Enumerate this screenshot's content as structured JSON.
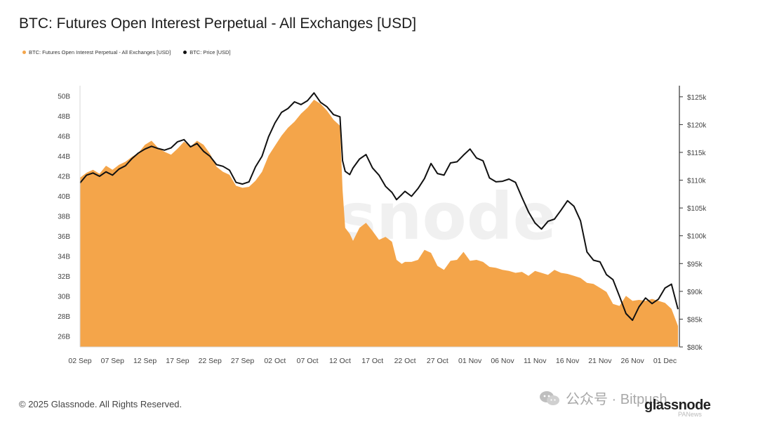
{
  "header": {
    "title": "BTC: Futures Open Interest Perpetual - All Exchanges [USD]"
  },
  "legend": [
    {
      "label": "BTC: Futures Open Interest Perpetual - All Exchanges [USD]",
      "color": "#f4a54a"
    },
    {
      "label": "BTC: Price [USD]",
      "color": "#111111"
    }
  ],
  "footer": {
    "copyright": "© 2025 Glassnode. All Rights Reserved.",
    "wechat_label": "公众号 · Bitpush",
    "logo_text": "glassnode",
    "small_logo": "PANews"
  },
  "watermark": "glassnode",
  "chart_data": {
    "type": "area",
    "title": "BTC: Futures Open Interest Perpetual - All Exchanges [USD]",
    "x_tick_labels": [
      "02 Sep",
      "07 Sep",
      "12 Sep",
      "17 Sep",
      "22 Sep",
      "27 Sep",
      "02 Oct",
      "07 Oct",
      "12 Oct",
      "17 Oct",
      "22 Oct",
      "27 Oct",
      "01 Nov",
      "06 Nov",
      "11 Nov",
      "16 Nov",
      "21 Nov",
      "26 Nov",
      "01 Dec"
    ],
    "y_left_ticks": [
      "26B",
      "28B",
      "30B",
      "32B",
      "34B",
      "36B",
      "38B",
      "40B",
      "42B",
      "44B",
      "46B",
      "48B",
      "50B"
    ],
    "y_right_ticks": [
      "$80k",
      "$85k",
      "$90k",
      "$95k",
      "$100k",
      "$105k",
      "$110k",
      "$115k",
      "$120k",
      "$125k"
    ],
    "y_left_range": [
      24.9,
      51
    ],
    "y_right_range": [
      80000,
      127000
    ],
    "x_range_days": [
      0,
      92
    ],
    "series": [
      {
        "name": "BTC: Futures Open Interest Perpetual - All Exchanges [USD]",
        "axis": "left",
        "unit": "B USD",
        "style": "area",
        "color": "#f4a54a",
        "points": [
          [
            0,
            41.8
          ],
          [
            1,
            42.3
          ],
          [
            2,
            42.6
          ],
          [
            3,
            42.2
          ],
          [
            4,
            43.0
          ],
          [
            5,
            42.6
          ],
          [
            6,
            43.1
          ],
          [
            7,
            43.4
          ],
          [
            8,
            43.9
          ],
          [
            9,
            44.3
          ],
          [
            10,
            45.1
          ],
          [
            11,
            45.5
          ],
          [
            12,
            44.8
          ],
          [
            13,
            44.4
          ],
          [
            14,
            44.1
          ],
          [
            15,
            44.7
          ],
          [
            16,
            45.4
          ],
          [
            17,
            44.9
          ],
          [
            18,
            45.5
          ],
          [
            19,
            45.1
          ],
          [
            20,
            44.2
          ],
          [
            21,
            42.9
          ],
          [
            22,
            42.4
          ],
          [
            23,
            42.1
          ],
          [
            24,
            41.0
          ],
          [
            25,
            40.8
          ],
          [
            26,
            40.9
          ],
          [
            27,
            41.5
          ],
          [
            28,
            42.4
          ],
          [
            29,
            44.0
          ],
          [
            30,
            45.0
          ],
          [
            31,
            46.0
          ],
          [
            32,
            46.8
          ],
          [
            33,
            47.4
          ],
          [
            34,
            48.2
          ],
          [
            35,
            48.8
          ],
          [
            36,
            49.6
          ],
          [
            37,
            49.2
          ],
          [
            38,
            48.5
          ],
          [
            39,
            47.6
          ],
          [
            40,
            47.0
          ],
          [
            40.4,
            40.6
          ],
          [
            40.8,
            36.8
          ],
          [
            41.5,
            36.2
          ],
          [
            42,
            35.5
          ],
          [
            43,
            36.8
          ],
          [
            44,
            37.3
          ],
          [
            45,
            36.5
          ],
          [
            46,
            35.6
          ],
          [
            47,
            35.9
          ],
          [
            48,
            35.4
          ],
          [
            48.7,
            33.6
          ],
          [
            49.5,
            33.2
          ],
          [
            50,
            33.4
          ],
          [
            51,
            33.4
          ],
          [
            52,
            33.6
          ],
          [
            53,
            34.6
          ],
          [
            54,
            34.3
          ],
          [
            55,
            33.0
          ],
          [
            56,
            32.6
          ],
          [
            57,
            33.5
          ],
          [
            58,
            33.6
          ],
          [
            59,
            34.4
          ],
          [
            60,
            33.5
          ],
          [
            61,
            33.6
          ],
          [
            62,
            33.4
          ],
          [
            63,
            32.9
          ],
          [
            64,
            32.8
          ],
          [
            65,
            32.6
          ],
          [
            66,
            32.5
          ],
          [
            67,
            32.3
          ],
          [
            68,
            32.4
          ],
          [
            69,
            32.0
          ],
          [
            70,
            32.5
          ],
          [
            71,
            32.3
          ],
          [
            72,
            32.1
          ],
          [
            73,
            32.6
          ],
          [
            74,
            32.3
          ],
          [
            75,
            32.2
          ],
          [
            76,
            32.0
          ],
          [
            77,
            31.8
          ],
          [
            78,
            31.3
          ],
          [
            79,
            31.2
          ],
          [
            80,
            30.8
          ],
          [
            81,
            30.4
          ],
          [
            82,
            29.2
          ],
          [
            83,
            29.0
          ],
          [
            84,
            30.0
          ],
          [
            85,
            29.5
          ],
          [
            86,
            29.6
          ],
          [
            87,
            29.5
          ],
          [
            88,
            29.7
          ],
          [
            89,
            29.5
          ],
          [
            90,
            29.3
          ],
          [
            91,
            28.7
          ],
          [
            92,
            27.0
          ]
        ]
      },
      {
        "name": "BTC: Price [USD]",
        "axis": "right",
        "unit": "USD",
        "style": "line",
        "color": "#111111",
        "points": [
          [
            0,
            109500
          ],
          [
            1,
            110900
          ],
          [
            2,
            111300
          ],
          [
            3,
            110700
          ],
          [
            4,
            111500
          ],
          [
            5,
            110900
          ],
          [
            6,
            112000
          ],
          [
            7,
            112600
          ],
          [
            8,
            113900
          ],
          [
            9,
            114900
          ],
          [
            10,
            115600
          ],
          [
            11,
            116100
          ],
          [
            12,
            115700
          ],
          [
            13,
            115400
          ],
          [
            14,
            115800
          ],
          [
            15,
            116900
          ],
          [
            16,
            117300
          ],
          [
            17,
            116000
          ],
          [
            18,
            116600
          ],
          [
            19,
            115200
          ],
          [
            20,
            114300
          ],
          [
            21,
            112800
          ],
          [
            22,
            112500
          ],
          [
            23,
            111800
          ],
          [
            24,
            109600
          ],
          [
            25,
            109300
          ],
          [
            26,
            109700
          ],
          [
            27,
            112400
          ],
          [
            28,
            114300
          ],
          [
            29,
            117800
          ],
          [
            30,
            120300
          ],
          [
            31,
            122200
          ],
          [
            32,
            122900
          ],
          [
            33,
            124100
          ],
          [
            34,
            123600
          ],
          [
            35,
            124300
          ],
          [
            36,
            125700
          ],
          [
            37,
            124000
          ],
          [
            38,
            123200
          ],
          [
            39,
            121800
          ],
          [
            40,
            121400
          ],
          [
            40.4,
            113500
          ],
          [
            40.8,
            111600
          ],
          [
            41.5,
            111000
          ],
          [
            42,
            112200
          ],
          [
            43,
            113800
          ],
          [
            44,
            114600
          ],
          [
            45,
            112200
          ],
          [
            46,
            110900
          ],
          [
            47,
            108900
          ],
          [
            48,
            107800
          ],
          [
            48.7,
            106500
          ],
          [
            49.5,
            107400
          ],
          [
            50,
            108000
          ],
          [
            51,
            107100
          ],
          [
            52,
            108500
          ],
          [
            53,
            110300
          ],
          [
            54,
            113000
          ],
          [
            55,
            111200
          ],
          [
            56,
            110900
          ],
          [
            57,
            113100
          ],
          [
            58,
            113300
          ],
          [
            59,
            114500
          ],
          [
            60,
            115600
          ],
          [
            61,
            114000
          ],
          [
            62,
            113500
          ],
          [
            63,
            110400
          ],
          [
            64,
            109700
          ],
          [
            65,
            109800
          ],
          [
            66,
            110200
          ],
          [
            67,
            109600
          ],
          [
            68,
            106900
          ],
          [
            69,
            104300
          ],
          [
            70,
            102300
          ],
          [
            71,
            101200
          ],
          [
            72,
            102600
          ],
          [
            73,
            103000
          ],
          [
            74,
            104600
          ],
          [
            75,
            106300
          ],
          [
            76,
            105300
          ],
          [
            77,
            102700
          ],
          [
            78,
            97100
          ],
          [
            79,
            95600
          ],
          [
            80,
            95300
          ],
          [
            81,
            93000
          ],
          [
            82,
            92100
          ],
          [
            83,
            89100
          ],
          [
            84,
            86000
          ],
          [
            85,
            84800
          ],
          [
            86,
            87200
          ],
          [
            87,
            88800
          ],
          [
            88,
            87800
          ],
          [
            89,
            88600
          ],
          [
            90,
            90600
          ],
          [
            91,
            91300
          ],
          [
            92,
            86800
          ]
        ]
      }
    ],
    "grid": false,
    "legend_position": "top-left"
  }
}
